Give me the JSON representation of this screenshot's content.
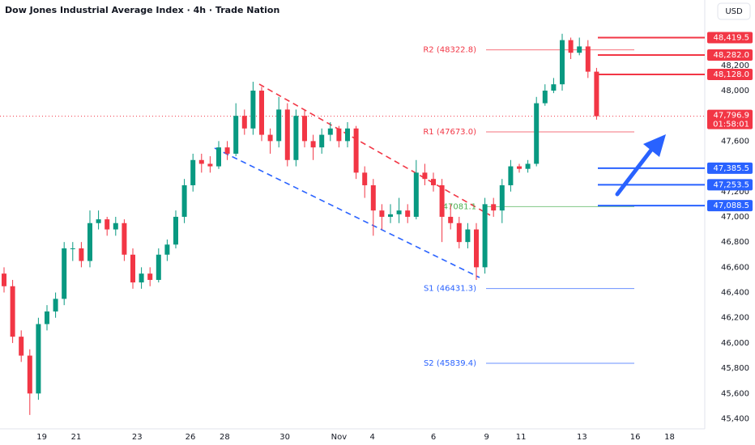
{
  "chart_data": {
    "type": "candlestick",
    "title": "Dow Jones Industrial Average Index · 4h · Trade Nation",
    "currency": "USD",
    "up_color": "#089981",
    "down_color": "#f23645",
    "ylim": [
      45320,
      48718
    ],
    "yticks": [
      {
        "value": 45400,
        "label": "45,400"
      },
      {
        "value": 45600,
        "label": "45,600"
      },
      {
        "value": 45800,
        "label": "45,800"
      },
      {
        "value": 46000,
        "label": "46,000"
      },
      {
        "value": 46200,
        "label": "46,200"
      },
      {
        "value": 46400,
        "label": "46,400"
      },
      {
        "value": 46600,
        "label": "46,600"
      },
      {
        "value": 46800,
        "label": "46,800"
      },
      {
        "value": 47000,
        "label": "47,000"
      },
      {
        "value": 47200,
        "label": "47,200"
      },
      {
        "value": 47600,
        "label": "47,600"
      },
      {
        "value": 48000,
        "label": "48,000"
      },
      {
        "value": 48200,
        "label": "48,200"
      }
    ],
    "x_labels": [
      "19",
      "21",
      "23",
      "26",
      "28",
      "30",
      "Nov",
      "4",
      "6",
      "9",
      "11",
      "13",
      "16",
      "18"
    ],
    "ohlc": {
      "open": [
        46550,
        46450,
        46050,
        45900,
        45600,
        46150,
        46250,
        46350,
        46750,
        46750,
        46650,
        46950,
        46980,
        46900,
        46950,
        46700,
        46480,
        46550,
        46500,
        46700,
        46780,
        47000,
        47250,
        47450,
        47420,
        47400,
        47550,
        47500,
        47800,
        47700,
        48000,
        47650,
        47600,
        47850,
        47450,
        47800,
        47600,
        47550,
        47650,
        47700,
        47600,
        47700,
        47350,
        47250,
        47050,
        47000,
        47020,
        47050,
        47000,
        47350,
        47300,
        47250,
        47000,
        46950,
        46800,
        46900,
        46600,
        47100,
        47050,
        47250,
        47400,
        47380,
        47420,
        47900,
        48000,
        48050,
        48400,
        48300,
        48350,
        48150
      ],
      "high": [
        46600,
        46500,
        46100,
        45950,
        46200,
        46300,
        46400,
        46800,
        46800,
        46800,
        47050,
        47050,
        47000,
        47000,
        46980,
        46750,
        46600,
        46600,
        46750,
        46820,
        47050,
        47300,
        47500,
        47500,
        47480,
        47600,
        47600,
        47900,
        47850,
        48070,
        48030,
        47700,
        47950,
        47900,
        47850,
        47850,
        47650,
        47700,
        47750,
        47720,
        47750,
        47720,
        47400,
        47300,
        47100,
        47100,
        47150,
        47100,
        47450,
        47420,
        47350,
        47300,
        47100,
        47000,
        46950,
        46950,
        47150,
        47150,
        47300,
        47450,
        47420,
        47450,
        47950,
        48050,
        48100,
        48450,
        48420,
        48420,
        48400,
        48180
      ],
      "low": [
        46400,
        46000,
        45850,
        45430,
        45550,
        46100,
        46200,
        46300,
        46650,
        46600,
        46600,
        46900,
        46850,
        46850,
        46650,
        46430,
        46430,
        46450,
        46480,
        46650,
        46750,
        46950,
        47200,
        47350,
        47350,
        47380,
        47450,
        47480,
        47650,
        47650,
        47600,
        47500,
        47550,
        47400,
        47400,
        47550,
        47450,
        47500,
        47600,
        47550,
        47550,
        47300,
        47150,
        46850,
        46900,
        46950,
        46950,
        46950,
        46980,
        47250,
        47200,
        46800,
        46900,
        46750,
        46750,
        46500,
        46550,
        47000,
        46950,
        47200,
        47350,
        47350,
        47400,
        47880,
        47980,
        48000,
        48250,
        48280,
        48100,
        47770
      ],
      "close": [
        46450,
        46050,
        45900,
        45600,
        46150,
        46250,
        46350,
        46750,
        46750,
        46650,
        46950,
        46980,
        46900,
        46950,
        46700,
        46480,
        46550,
        46500,
        46700,
        46780,
        47000,
        47250,
        47450,
        47420,
        47400,
        47550,
        47500,
        47800,
        47700,
        48000,
        47650,
        47600,
        47850,
        47450,
        47800,
        47600,
        47550,
        47650,
        47700,
        47600,
        47700,
        47350,
        47250,
        47050,
        47000,
        47020,
        47050,
        47000,
        47350,
        47300,
        47250,
        47000,
        46950,
        46800,
        46900,
        46600,
        47100,
        47050,
        47250,
        47400,
        47380,
        47420,
        47900,
        48000,
        48050,
        48400,
        48300,
        48350,
        48150,
        47796.9
      ]
    },
    "current_price": {
      "value": 47796.9,
      "label": "47,796.9",
      "countdown": "01:58:01",
      "color": "#f23645"
    },
    "levels": [
      {
        "value": 48419.5,
        "label": "48,419.5",
        "color": "#f23645"
      },
      {
        "value": 48282.0,
        "label": "48,282.0",
        "color": "#f23645"
      },
      {
        "value": 48128.0,
        "label": "48,128.0",
        "color": "#f23645"
      },
      {
        "value": 47385.5,
        "label": "47,385.5",
        "color": "#2962ff"
      },
      {
        "value": 47253.5,
        "label": "47,253.5",
        "color": "#2962ff"
      },
      {
        "value": 47088.5,
        "label": "47,088.5",
        "color": "#2962ff"
      }
    ],
    "pivots": [
      {
        "value": 48322.8,
        "label": "R2 (48322.8)",
        "color": "#f23645"
      },
      {
        "value": 47673.0,
        "label": "R1 (47673.0)",
        "color": "#f23645"
      },
      {
        "value": 47081.1,
        "label": "47081.1",
        "color": "#4caf50"
      },
      {
        "value": 46431.3,
        "label": "S1 (46431.3)",
        "color": "#2962ff"
      },
      {
        "value": 45839.4,
        "label": "S2 (45839.4)",
        "color": "#2962ff"
      }
    ]
  }
}
